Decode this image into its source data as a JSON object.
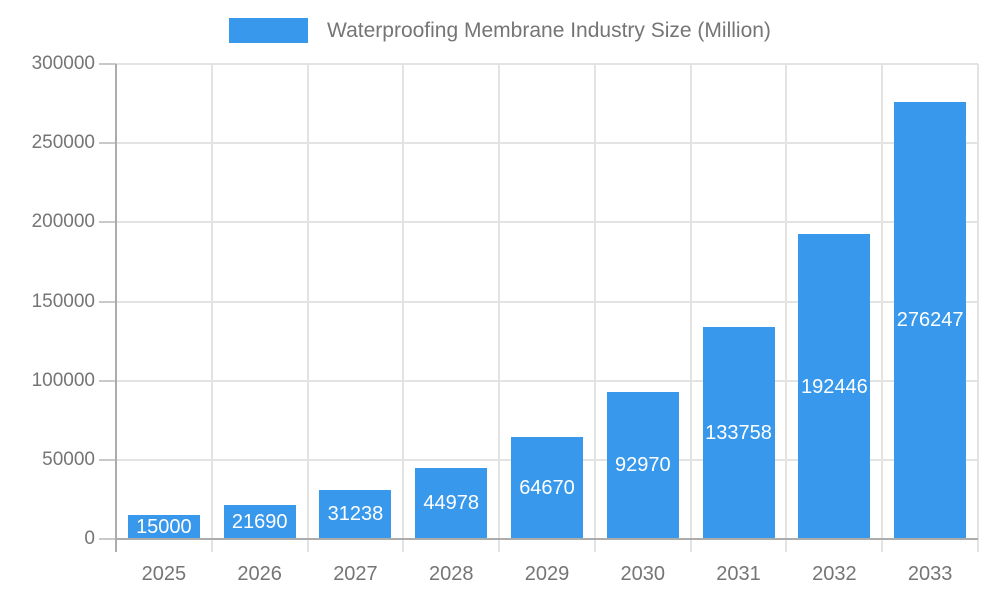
{
  "legend": {
    "label": "Waterproofing Membrane Industry Size (Million)"
  },
  "colors": {
    "bar": "#3898EC",
    "bar_label": "#FFFFFF",
    "grid": "#E3E3E3",
    "axis": "#ACACAC",
    "tick": "#C9C9C9",
    "text": "#757575",
    "background": "#FFFFFF"
  },
  "chart_data": {
    "type": "bar",
    "title": "Waterproofing Membrane Industry Size (Million)",
    "categories": [
      "2025",
      "2026",
      "2027",
      "2028",
      "2029",
      "2030",
      "2031",
      "2032",
      "2033"
    ],
    "values": [
      15000,
      21690,
      31238,
      44978,
      64670,
      92970,
      133758,
      192446,
      276247
    ],
    "xlabel": "",
    "ylabel": "",
    "ylim": [
      0,
      300000
    ],
    "y_ticks": [
      0,
      50000,
      100000,
      150000,
      200000,
      250000,
      300000
    ],
    "grid": "on",
    "legend_position": "top",
    "bar_label_style": "inside-center-white"
  }
}
